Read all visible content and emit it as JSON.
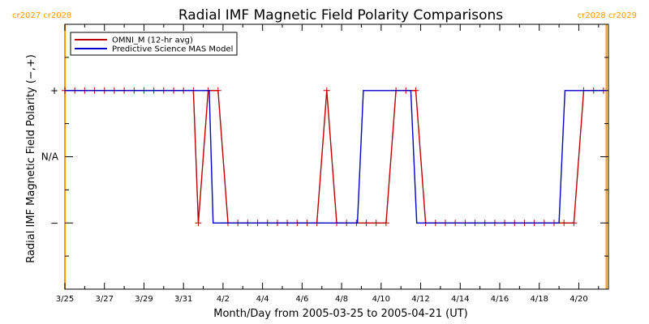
{
  "header": {
    "left_cr_labels": [
      "cr2027",
      "cr2028"
    ],
    "right_cr_labels": [
      "cr2028",
      "cr2029"
    ]
  },
  "chart_data": {
    "type": "line",
    "title": "Radial IMF Magnetic Field Polarity Comparisons",
    "xlabel": "Month/Day from 2005-03-25 to 2005-04-21 (UT)",
    "ylabel": "Radial IMF Magnetic Field Polarity (−,+)",
    "x_tick_labels": [
      "3/25",
      "3/27",
      "3/29",
      "3/31",
      "4/2",
      "4/4",
      "4/6",
      "4/8",
      "4/10",
      "4/12",
      "4/14",
      "4/16",
      "4/18",
      "4/20"
    ],
    "y_tick_labels": [
      "+",
      "N/A",
      "−"
    ],
    "y_values_mapping": {
      "+": 1,
      "N/A": 0,
      "−": -1
    },
    "xlim": [
      0,
      27.5
    ],
    "ylim": [
      -2,
      2
    ],
    "legend_position": "top-left",
    "vertical_markers": [
      {
        "x": 0.0,
        "color": "#ff9900"
      },
      {
        "x": 27.4,
        "color": "#ff9900"
      }
    ],
    "series": [
      {
        "name": "OMNI_M (12-hr avg)",
        "color": "#bb0000",
        "marker": "+",
        "x": [
          0.0,
          0.5,
          1.0,
          1.5,
          2.0,
          2.5,
          3.0,
          3.5,
          4.0,
          4.5,
          5.0,
          5.5,
          6.0,
          6.5,
          6.75,
          7.25,
          7.75,
          8.25,
          8.75,
          9.25,
          9.75,
          10.25,
          10.75,
          11.25,
          11.75,
          12.25,
          12.75,
          13.25,
          13.75,
          14.25,
          14.75,
          15.25,
          15.75,
          16.25,
          16.75,
          17.25,
          17.75,
          18.25,
          18.75,
          19.25,
          19.75,
          20.25,
          20.75,
          21.25,
          21.75,
          22.25,
          22.75,
          23.25,
          23.75,
          24.25,
          24.75,
          25.25,
          25.75,
          26.25,
          26.75,
          27.25
        ],
        "y": [
          1,
          1,
          1,
          1,
          1,
          1,
          1,
          1,
          1,
          1,
          1,
          1,
          1,
          1,
          -1,
          1,
          1,
          -1,
          -1,
          -1,
          -1,
          -1,
          -1,
          -1,
          -1,
          -1,
          -1,
          1,
          -1,
          -1,
          -1,
          -1,
          -1,
          -1,
          1,
          1,
          1,
          -1,
          -1,
          -1,
          -1,
          -1,
          -1,
          -1,
          -1,
          -1,
          -1,
          -1,
          -1,
          -1,
          -1,
          -1,
          -1,
          1,
          1,
          1
        ]
      },
      {
        "name": "Predictive Science MAS Model",
        "color": "#0000cc",
        "marker": "none",
        "x": [
          0.0,
          7.0,
          7.3,
          7.5,
          14.8,
          15.1,
          17.5,
          17.8,
          25.0,
          25.3,
          27.4
        ],
        "y": [
          1,
          1,
          1,
          -1,
          -1,
          1,
          1,
          -1,
          -1,
          1,
          1
        ]
      }
    ]
  }
}
